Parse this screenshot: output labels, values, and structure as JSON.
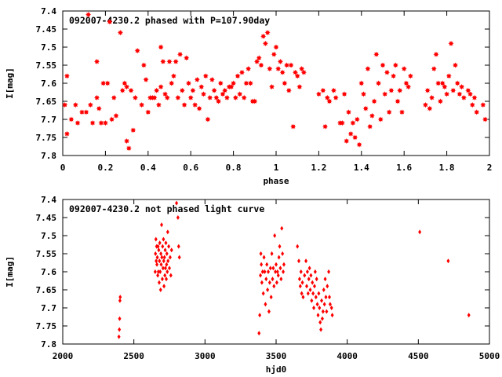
{
  "chart_data": [
    {
      "type": "scatter",
      "title": "092007-4230.2 phased with P=107.90day",
      "xlabel": "phase",
      "ylabel": "I[mag]",
      "xlim": [
        0,
        2
      ],
      "ylim": [
        7.8,
        7.4
      ],
      "y_inverted": true,
      "grid": false,
      "marker": "star",
      "color": "#ff0000",
      "x_ticks": [
        0,
        0.2,
        0.4,
        0.6,
        0.8,
        1,
        1.2,
        1.4,
        1.6,
        1.8,
        2
      ],
      "x_tick_labels": [
        "0",
        "0.2",
        "0.4",
        "0.6",
        "0.8",
        "1",
        "1.2",
        "1.4",
        "1.6",
        "1.8",
        "2"
      ],
      "y_ticks": [
        7.4,
        7.45,
        7.5,
        7.55,
        7.6,
        7.65,
        7.7,
        7.75,
        7.8
      ],
      "y_tick_labels": [
        "7.4",
        "7.45",
        "7.5",
        "7.55",
        "7.6",
        "7.65",
        "7.7",
        "7.75",
        "7.8"
      ],
      "points": [
        [
          0.01,
          7.66
        ],
        [
          0.02,
          7.58
        ],
        [
          0.02,
          7.74
        ],
        [
          0.04,
          7.7
        ],
        [
          0.06,
          7.66
        ],
        [
          0.07,
          7.71
        ],
        [
          0.09,
          7.68
        ],
        [
          0.11,
          7.68
        ],
        [
          0.12,
          7.41
        ],
        [
          0.13,
          7.66
        ],
        [
          0.14,
          7.71
        ],
        [
          0.16,
          7.54
        ],
        [
          0.16,
          7.64
        ],
        [
          0.17,
          7.67
        ],
        [
          0.18,
          7.71
        ],
        [
          0.19,
          7.6
        ],
        [
          0.2,
          7.71
        ],
        [
          0.21,
          7.6
        ],
        [
          0.22,
          7.43
        ],
        [
          0.23,
          7.7
        ],
        [
          0.24,
          7.64
        ],
        [
          0.25,
          7.69
        ],
        [
          0.27,
          7.46
        ],
        [
          0.28,
          7.62
        ],
        [
          0.29,
          7.6
        ],
        [
          0.3,
          7.61
        ],
        [
          0.3,
          7.76
        ],
        [
          0.31,
          7.78
        ],
        [
          0.32,
          7.62
        ],
        [
          0.33,
          7.73
        ],
        [
          0.34,
          7.64
        ],
        [
          0.35,
          7.51
        ],
        [
          0.37,
          7.66
        ],
        [
          0.38,
          7.55
        ],
        [
          0.39,
          7.59
        ],
        [
          0.4,
          7.68
        ],
        [
          0.41,
          7.64
        ],
        [
          0.42,
          7.64
        ],
        [
          0.43,
          7.64
        ],
        [
          0.44,
          7.62
        ],
        [
          0.45,
          7.66
        ],
        [
          0.46,
          7.5
        ],
        [
          0.46,
          7.61
        ],
        [
          0.47,
          7.54
        ],
        [
          0.48,
          7.63
        ],
        [
          0.49,
          7.64
        ],
        [
          0.5,
          7.54
        ],
        [
          0.51,
          7.6
        ],
        [
          0.52,
          7.58
        ],
        [
          0.53,
          7.54
        ],
        [
          0.54,
          7.64
        ],
        [
          0.55,
          7.52
        ],
        [
          0.56,
          7.62
        ],
        [
          0.57,
          7.66
        ],
        [
          0.58,
          7.53
        ],
        [
          0.59,
          7.6
        ],
        [
          0.6,
          7.64
        ],
        [
          0.61,
          7.62
        ],
        [
          0.62,
          7.66
        ],
        [
          0.63,
          7.59
        ],
        [
          0.64,
          7.67
        ],
        [
          0.65,
          7.61
        ],
        [
          0.66,
          7.63
        ],
        [
          0.67,
          7.58
        ],
        [
          0.68,
          7.7
        ],
        [
          0.69,
          7.64
        ],
        [
          0.7,
          7.59
        ],
        [
          0.71,
          7.62
        ],
        [
          0.72,
          7.64
        ],
        [
          0.73,
          7.65
        ],
        [
          0.74,
          7.6
        ],
        [
          0.75,
          7.63
        ],
        [
          0.76,
          7.62
        ],
        [
          0.77,
          7.64
        ],
        [
          0.78,
          7.61
        ],
        [
          0.79,
          7.61
        ],
        [
          0.8,
          7.6
        ],
        [
          0.81,
          7.64
        ],
        [
          0.82,
          7.58
        ],
        [
          0.83,
          7.63
        ],
        [
          0.84,
          7.57
        ],
        [
          0.85,
          7.64
        ],
        [
          0.86,
          7.6
        ],
        [
          0.87,
          7.56
        ],
        [
          0.88,
          7.6
        ],
        [
          0.89,
          7.65
        ],
        [
          0.9,
          7.65
        ],
        [
          0.91,
          7.54
        ],
        [
          0.92,
          7.53
        ],
        [
          0.93,
          7.55
        ],
        [
          0.94,
          7.47
        ],
        [
          0.95,
          7.49
        ],
        [
          0.96,
          7.46
        ],
        [
          0.97,
          7.56
        ],
        [
          0.98,
          7.61
        ],
        [
          0.99,
          7.52
        ],
        [
          1.0,
          7.5
        ],
        [
          1.01,
          7.56
        ],
        [
          1.02,
          7.54
        ],
        [
          1.03,
          7.57
        ],
        [
          1.04,
          7.6
        ],
        [
          1.05,
          7.55
        ],
        [
          1.06,
          7.62
        ],
        [
          1.07,
          7.55
        ],
        [
          1.08,
          7.72
        ],
        [
          1.09,
          7.57
        ],
        [
          1.1,
          7.58
        ],
        [
          1.11,
          7.61
        ],
        [
          1.12,
          7.56
        ],
        [
          1.13,
          7.57
        ],
        [
          1.2,
          7.63
        ],
        [
          1.22,
          7.62
        ],
        [
          1.23,
          7.72
        ],
        [
          1.24,
          7.64
        ],
        [
          1.25,
          7.65
        ],
        [
          1.27,
          7.62
        ],
        [
          1.28,
          7.64
        ],
        [
          1.3,
          7.71
        ],
        [
          1.31,
          7.71
        ],
        [
          1.32,
          7.63
        ],
        [
          1.33,
          7.76
        ],
        [
          1.34,
          7.68
        ],
        [
          1.35,
          7.74
        ],
        [
          1.36,
          7.71
        ],
        [
          1.37,
          7.75
        ],
        [
          1.38,
          7.7
        ],
        [
          1.39,
          7.77
        ],
        [
          1.4,
          7.6
        ],
        [
          1.41,
          7.63
        ],
        [
          1.42,
          7.67
        ],
        [
          1.43,
          7.56
        ],
        [
          1.44,
          7.72
        ],
        [
          1.45,
          7.69
        ],
        [
          1.46,
          7.65
        ],
        [
          1.47,
          7.52
        ],
        [
          1.48,
          7.6
        ],
        [
          1.49,
          7.7
        ],
        [
          1.5,
          7.55
        ],
        [
          1.51,
          7.63
        ],
        [
          1.52,
          7.57
        ],
        [
          1.53,
          7.68
        ],
        [
          1.54,
          7.62
        ],
        [
          1.55,
          7.58
        ],
        [
          1.56,
          7.55
        ],
        [
          1.57,
          7.65
        ],
        [
          1.58,
          7.62
        ],
        [
          1.59,
          7.68
        ],
        [
          1.6,
          7.56
        ],
        [
          1.61,
          7.6
        ],
        [
          1.62,
          7.61
        ],
        [
          1.63,
          7.58
        ],
        [
          1.7,
          7.66
        ],
        [
          1.71,
          7.62
        ],
        [
          1.72,
          7.67
        ],
        [
          1.73,
          7.64
        ],
        [
          1.74,
          7.56
        ],
        [
          1.75,
          7.52
        ],
        [
          1.76,
          7.6
        ],
        [
          1.77,
          7.65
        ],
        [
          1.78,
          7.6
        ],
        [
          1.79,
          7.61
        ],
        [
          1.8,
          7.63
        ],
        [
          1.81,
          7.58
        ],
        [
          1.82,
          7.49
        ],
        [
          1.83,
          7.62
        ],
        [
          1.84,
          7.55
        ],
        [
          1.85,
          7.6
        ],
        [
          1.86,
          7.63
        ],
        [
          1.87,
          7.61
        ],
        [
          1.88,
          7.64
        ],
        [
          1.9,
          7.62
        ],
        [
          1.91,
          7.63
        ],
        [
          1.92,
          7.66
        ],
        [
          1.93,
          7.64
        ],
        [
          1.94,
          7.68
        ],
        [
          1.97,
          7.66
        ],
        [
          1.98,
          7.7
        ]
      ]
    },
    {
      "type": "scatter",
      "title": "092007-4230.2 not phased light curve",
      "xlabel": "hjd0",
      "ylabel": "I[mag]",
      "xlim": [
        2000,
        5000
      ],
      "ylim": [
        7.8,
        7.4
      ],
      "y_inverted": true,
      "grid": false,
      "marker": "diamond",
      "color": "#ff0000",
      "x_ticks": [
        2000,
        2500,
        3000,
        3500,
        4000,
        4500,
        5000
      ],
      "x_tick_labels": [
        "2000",
        "2500",
        "3000",
        "3500",
        "4000",
        "4500",
        "5000"
      ],
      "y_ticks": [
        7.4,
        7.45,
        7.5,
        7.55,
        7.6,
        7.65,
        7.7,
        7.75,
        7.8
      ],
      "y_tick_labels": [
        "7.4",
        "7.45",
        "7.5",
        "7.55",
        "7.6",
        "7.65",
        "7.7",
        "7.75",
        "7.8"
      ],
      "points": [
        [
          2395,
          7.78
        ],
        [
          2398,
          7.76
        ],
        [
          2400,
          7.73
        ],
        [
          2402,
          7.68
        ],
        [
          2404,
          7.67
        ],
        [
          2650,
          7.6
        ],
        [
          2652,
          7.55
        ],
        [
          2655,
          7.51
        ],
        [
          2657,
          7.57
        ],
        [
          2660,
          7.53
        ],
        [
          2662,
          7.58
        ],
        [
          2665,
          7.56
        ],
        [
          2668,
          7.61
        ],
        [
          2670,
          7.53
        ],
        [
          2672,
          7.6
        ],
        [
          2675,
          7.54
        ],
        [
          2678,
          7.63
        ],
        [
          2680,
          7.57
        ],
        [
          2682,
          7.52
        ],
        [
          2685,
          7.6
        ],
        [
          2688,
          7.65
        ],
        [
          2690,
          7.55
        ],
        [
          2692,
          7.58
        ],
        [
          2695,
          7.47
        ],
        [
          2697,
          7.56
        ],
        [
          2700,
          7.62
        ],
        [
          2702,
          7.53
        ],
        [
          2705,
          7.59
        ],
        [
          2708,
          7.51
        ],
        [
          2710,
          7.57
        ],
        [
          2712,
          7.64
        ],
        [
          2715,
          7.56
        ],
        [
          2718,
          7.61
        ],
        [
          2720,
          7.54
        ],
        [
          2722,
          7.59
        ],
        [
          2725,
          7.52
        ],
        [
          2728,
          7.62
        ],
        [
          2730,
          7.58
        ],
        [
          2732,
          7.55
        ],
        [
          2735,
          7.6
        ],
        [
          2738,
          7.49
        ],
        [
          2740,
          7.57
        ],
        [
          2745,
          7.53
        ],
        [
          2750,
          7.59
        ],
        [
          2755,
          7.56
        ],
        [
          2760,
          7.61
        ],
        [
          2765,
          7.54
        ],
        [
          2800,
          7.41
        ],
        [
          2810,
          7.45
        ],
        [
          2815,
          7.53
        ],
        [
          2820,
          7.56
        ],
        [
          3380,
          7.77
        ],
        [
          3385,
          7.72
        ],
        [
          3390,
          7.61
        ],
        [
          3393,
          7.55
        ],
        [
          3396,
          7.58
        ],
        [
          3400,
          7.63
        ],
        [
          3405,
          7.6
        ],
        [
          3410,
          7.66
        ],
        [
          3415,
          7.56
        ],
        [
          3420,
          7.6
        ],
        [
          3425,
          7.69
        ],
        [
          3430,
          7.62
        ],
        [
          3435,
          7.58
        ],
        [
          3440,
          7.65
        ],
        [
          3445,
          7.6
        ],
        [
          3450,
          7.71
        ],
        [
          3455,
          7.63
        ],
        [
          3460,
          7.59
        ],
        [
          3465,
          7.67
        ],
        [
          3470,
          7.55
        ],
        [
          3475,
          7.62
        ],
        [
          3480,
          7.59
        ],
        [
          3485,
          7.64
        ],
        [
          3490,
          7.5
        ],
        [
          3495,
          7.6
        ],
        [
          3500,
          7.58
        ],
        [
          3505,
          7.63
        ],
        [
          3510,
          7.6
        ],
        [
          3515,
          7.61
        ],
        [
          3520,
          7.56
        ],
        [
          3525,
          7.53
        ],
        [
          3530,
          7.59
        ],
        [
          3535,
          7.62
        ],
        [
          3540,
          7.48
        ],
        [
          3545,
          7.55
        ],
        [
          3550,
          7.6
        ],
        [
          3555,
          7.58
        ],
        [
          3650,
          7.53
        ],
        [
          3660,
          7.57
        ],
        [
          3665,
          7.62
        ],
        [
          3670,
          7.64
        ],
        [
          3675,
          7.6
        ],
        [
          3680,
          7.66
        ],
        [
          3685,
          7.63
        ],
        [
          3690,
          7.67
        ],
        [
          3700,
          7.61
        ],
        [
          3710,
          7.57
        ],
        [
          3715,
          7.64
        ],
        [
          3720,
          7.6
        ],
        [
          3725,
          7.66
        ],
        [
          3730,
          7.62
        ],
        [
          3735,
          7.59
        ],
        [
          3740,
          7.65
        ],
        [
          3745,
          7.61
        ],
        [
          3750,
          7.68
        ],
        [
          3755,
          7.63
        ],
        [
          3760,
          7.66
        ],
        [
          3765,
          7.7
        ],
        [
          3770,
          7.64
        ],
        [
          3775,
          7.6
        ],
        [
          3780,
          7.67
        ],
        [
          3785,
          7.62
        ],
        [
          3790,
          7.69
        ],
        [
          3795,
          7.72
        ],
        [
          3800,
          7.66
        ],
        [
          3805,
          7.7
        ],
        [
          3810,
          7.74
        ],
        [
          3815,
          7.76
        ],
        [
          3820,
          7.68
        ],
        [
          3825,
          7.73
        ],
        [
          3830,
          7.71
        ],
        [
          3835,
          7.65
        ],
        [
          3840,
          7.69
        ],
        [
          3845,
          7.62
        ],
        [
          3850,
          7.67
        ],
        [
          3855,
          7.71
        ],
        [
          3860,
          7.64
        ],
        [
          3870,
          7.6
        ],
        [
          3875,
          7.67
        ],
        [
          3880,
          7.69
        ],
        [
          3890,
          7.7
        ],
        [
          3895,
          7.72
        ],
        [
          4510,
          7.49
        ],
        [
          4710,
          7.57
        ],
        [
          4855,
          7.72
        ]
      ]
    }
  ]
}
